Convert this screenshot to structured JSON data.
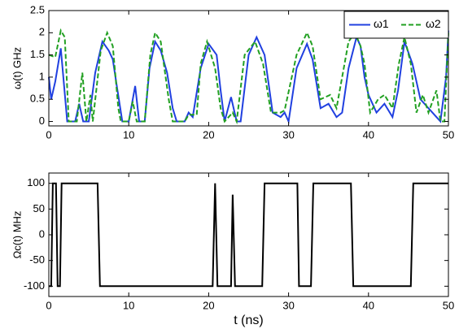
{
  "chart_data": [
    {
      "type": "line",
      "ylabel": "ω(t) GHz",
      "xlim": [
        0,
        50
      ],
      "xticks": [
        0,
        10,
        20,
        30,
        40,
        50
      ],
      "ylim": [
        -0.1,
        2.5
      ],
      "yticks": [
        0,
        0.5,
        1,
        1.5,
        2,
        2.5
      ],
      "legend": "upper right",
      "series": [
        {
          "name": "ω1",
          "color": "#2040e0",
          "dash": false,
          "x": [
            0,
            0.3,
            0.8,
            1.5,
            2.3,
            3.3,
            3.8,
            4.3,
            5,
            5.8,
            6.7,
            7.5,
            8,
            8.5,
            9.2,
            10,
            10.8,
            11.3,
            12,
            12.6,
            13.3,
            14,
            14.8,
            15.5,
            16,
            17,
            17.5,
            18,
            19,
            20,
            21,
            21.5,
            22,
            22.8,
            23.5,
            24,
            25,
            26,
            27,
            28,
            29,
            29.5,
            30,
            31,
            32.3,
            33,
            34,
            35,
            36,
            36.7,
            37.5,
            38.5,
            39,
            39.5,
            40,
            41,
            42,
            43,
            43.7,
            44.5,
            45.5,
            46.5,
            47.5,
            48.5,
            49,
            49.7,
            50
          ],
          "values": [
            1.0,
            0.5,
            0.9,
            1.65,
            0,
            0,
            0.4,
            0,
            0,
            1.1,
            1.8,
            1.6,
            1.4,
            0.8,
            0,
            0,
            0.8,
            0,
            0,
            1.2,
            1.8,
            1.6,
            1.1,
            0.3,
            0,
            0,
            0.2,
            0.1,
            1.2,
            1.75,
            1.5,
            0.7,
            0,
            0.55,
            0,
            0,
            1.5,
            1.9,
            1.5,
            0.2,
            0.1,
            0.2,
            0,
            1.2,
            1.75,
            1.4,
            0.3,
            0.4,
            0.1,
            0.2,
            1.2,
            1.9,
            1.7,
            1.0,
            0.6,
            0.2,
            0.4,
            0.1,
            0.7,
            1.8,
            1.3,
            0.5,
            0.3,
            0.1,
            0,
            1.0,
            2.05
          ]
        },
        {
          "name": "ω2",
          "color": "#22a022",
          "dash": true,
          "x": [
            0,
            0.8,
            1.5,
            2,
            2.5,
            3.5,
            4.2,
            4.7,
            5.2,
            5.5,
            6.5,
            7.3,
            8,
            8.7,
            9,
            10,
            10.5,
            11,
            12,
            12.7,
            13.3,
            14,
            15,
            15.5,
            17,
            17.5,
            18.5,
            19,
            19.8,
            20.8,
            21.5,
            22,
            23,
            23.5,
            24.5,
            25.8,
            26.8,
            27.8,
            29,
            29.5,
            31,
            32.3,
            33,
            34,
            35.2,
            36,
            37.5,
            38.3,
            39,
            39.5,
            40.2,
            41.2,
            42,
            43,
            43.8,
            44.5,
            45.3,
            46,
            46.8,
            47.5,
            48.5,
            49,
            49.5,
            50
          ],
          "values": [
            1.5,
            1.45,
            2.05,
            1.9,
            0,
            0,
            1.1,
            0,
            0.6,
            0,
            1.6,
            2.0,
            1.7,
            0.3,
            0,
            0,
            0.45,
            0,
            0,
            1.5,
            2.0,
            1.8,
            0.5,
            0,
            0,
            0.15,
            0.15,
            1.3,
            1.8,
            1.2,
            0.3,
            0,
            0.2,
            0,
            1.5,
            1.8,
            1.3,
            0.2,
            0.2,
            0.25,
            1.5,
            2.0,
            1.7,
            0.5,
            0.6,
            0.3,
            1.8,
            2.0,
            1.7,
            1.3,
            0.2,
            0.5,
            0.6,
            0.3,
            1.3,
            1.9,
            1.3,
            0.2,
            0.6,
            0.2,
            0.7,
            0,
            0,
            2.0
          ]
        }
      ]
    },
    {
      "type": "line",
      "ylabel": "Ωc(t) MHz",
      "xlabel": "t (ns)",
      "xlim": [
        0,
        50
      ],
      "xticks": [
        0,
        10,
        20,
        30,
        40,
        50
      ],
      "ylim": [
        -120,
        120
      ],
      "yticks": [
        -100,
        -50,
        0,
        50,
        100
      ],
      "series": [
        {
          "color": "#000000",
          "dash": false,
          "x": [
            0,
            0.3,
            0.5,
            0.9,
            1.1,
            1.4,
            1.6,
            6.1,
            6.4,
            20.5,
            20.8,
            21.1,
            22.8,
            23,
            23.3,
            26.7,
            27,
            31.1,
            31.3,
            32.8,
            33.1,
            37.8,
            38.1,
            45.3,
            45.6,
            50
          ],
          "values": [
            -100,
            -100,
            100,
            100,
            -100,
            -100,
            100,
            100,
            -100,
            -100,
            100,
            -100,
            -100,
            78,
            -100,
            -100,
            100,
            100,
            -100,
            -100,
            100,
            100,
            -100,
            -100,
            100,
            100
          ]
        }
      ]
    }
  ]
}
